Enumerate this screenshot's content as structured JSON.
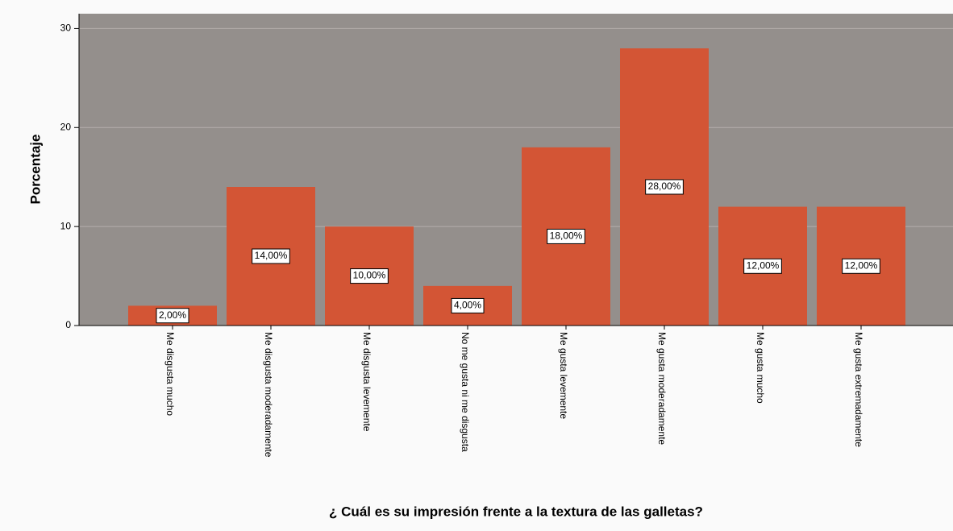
{
  "chart_data": {
    "type": "bar",
    "categories": [
      "Me disgusta mucho",
      "Me disgusta moderadamente",
      "Me disgusta levemente",
      "No me gusta ni me disgusta",
      "Me gusta levemente",
      "Me gusta moderadamente",
      "Me gusta mucho",
      "Me gusta extremadamente"
    ],
    "values": [
      2,
      14,
      10,
      4,
      18,
      28,
      12,
      12
    ],
    "value_labels": [
      "2,00%",
      "14,00%",
      "10,00%",
      "4,00%",
      "18,00%",
      "28,00%",
      "12,00%",
      "12,00%"
    ],
    "color": "#d35535",
    "ylabel": "Porcentaje",
    "xlabel": "¿ Cuál es su impresión frente a la textura de las galletas?",
    "ylim": [
      0,
      31.5
    ],
    "yticks": [
      0,
      10,
      20,
      30
    ],
    "grid": true
  }
}
